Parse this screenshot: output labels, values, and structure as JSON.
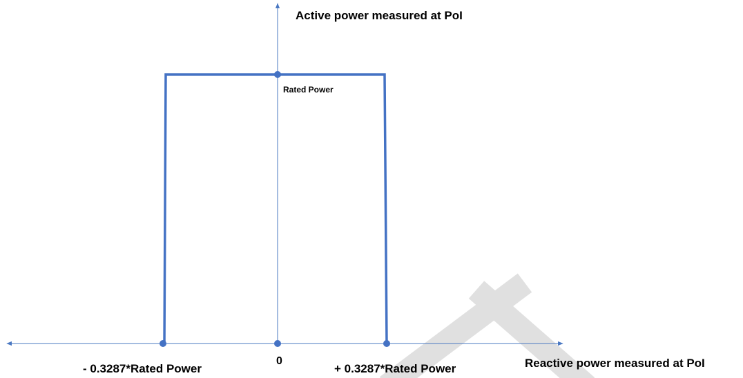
{
  "y_axis_label": "Active power measured at PoI",
  "x_axis_label": "Reactive power measured at PoI",
  "top_point_label": "Rated Power",
  "origin_label": "0",
  "left_point_label": "- 0.3287*Rated Power",
  "right_point_label": "+ 0.3287*Rated Power"
}
